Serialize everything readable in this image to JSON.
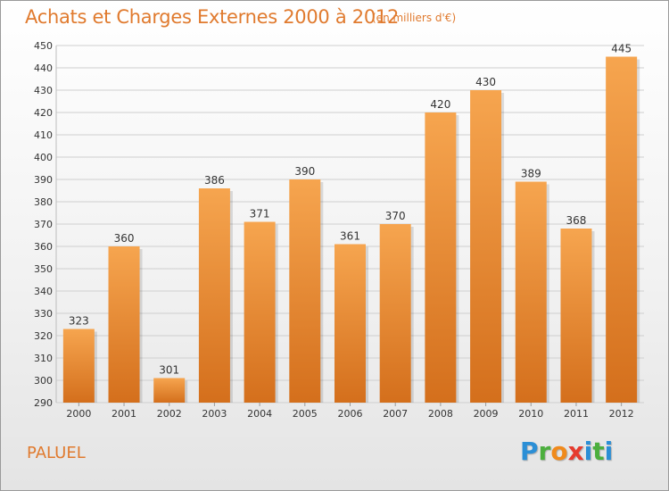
{
  "title": "Achats et Charges Externes 2000 à 2012",
  "subtitle": "(en milliers d'€)",
  "commune": "PALUEL",
  "logo": {
    "letters": [
      "P",
      "r",
      "o",
      "x",
      "i",
      "t",
      "i"
    ],
    "colors": [
      "#2b8fd6",
      "#4caf3e",
      "#f08a1c",
      "#e63b2e",
      "#2b8fd6",
      "#4caf3e",
      "#2b8fd6"
    ]
  },
  "colors": {
    "bar_top": "#f6a54f",
    "bar_bottom": "#d46f1c",
    "accent": "#e07a2e",
    "grid": "#cfcfcf",
    "axis_text": "#333333"
  },
  "chart_data": {
    "type": "bar",
    "categories": [
      "2000",
      "2001",
      "2002",
      "2003",
      "2004",
      "2005",
      "2006",
      "2007",
      "2008",
      "2009",
      "2010",
      "2011",
      "2012"
    ],
    "values": [
      323,
      360,
      301,
      386,
      371,
      390,
      361,
      370,
      420,
      430,
      389,
      368,
      445
    ],
    "ylim": [
      290,
      450
    ],
    "yticks": [
      290,
      300,
      310,
      320,
      330,
      340,
      350,
      360,
      370,
      380,
      390,
      400,
      410,
      420,
      430,
      440,
      450
    ],
    "grid": true,
    "data_labels": true
  }
}
